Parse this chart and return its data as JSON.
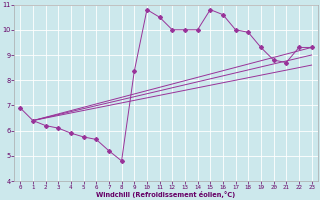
{
  "xlabel": "Windchill (Refroidissement éolien,°C)",
  "xlim": [
    -0.5,
    23.5
  ],
  "ylim": [
    4,
    11
  ],
  "xticks": [
    0,
    1,
    2,
    3,
    4,
    5,
    6,
    7,
    8,
    9,
    10,
    11,
    12,
    13,
    14,
    15,
    16,
    17,
    18,
    19,
    20,
    21,
    22,
    23
  ],
  "yticks": [
    4,
    5,
    6,
    7,
    8,
    9,
    10,
    11
  ],
  "bg_color": "#cce8ec",
  "line_color": "#993399",
  "main_x": [
    0,
    1,
    2,
    3,
    4,
    5,
    6,
    7,
    8,
    9,
    10,
    11,
    12,
    13,
    14,
    15,
    16,
    17,
    18,
    19,
    20,
    21,
    22,
    23
  ],
  "main_y": [
    6.9,
    6.4,
    6.2,
    6.1,
    5.9,
    5.75,
    5.65,
    5.2,
    4.8,
    8.35,
    10.8,
    10.5,
    10.0,
    10.0,
    10.0,
    10.8,
    10.6,
    10.0,
    9.9,
    9.3,
    8.8,
    8.7,
    9.3,
    9.3
  ],
  "trend1_x": [
    1,
    23
  ],
  "trend1_y": [
    6.4,
    8.6
  ],
  "trend2_x": [
    1,
    23
  ],
  "trend2_y": [
    6.4,
    9.0
  ],
  "trend3_x": [
    1,
    23
  ],
  "trend3_y": [
    6.4,
    9.3
  ],
  "figsize": [
    3.2,
    2.0
  ],
  "dpi": 100
}
